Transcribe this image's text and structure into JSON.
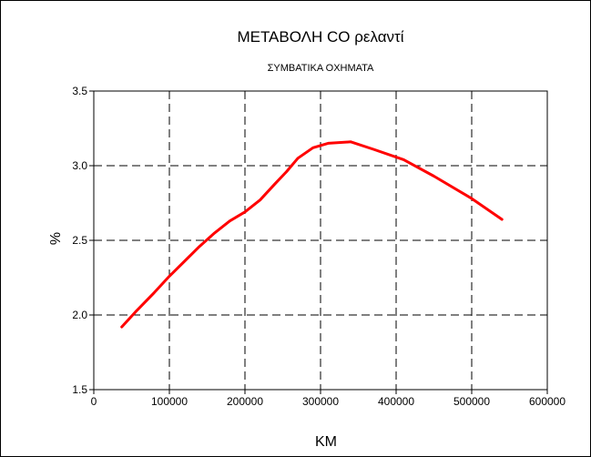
{
  "chart_data": {
    "type": "line",
    "title": "ΜΕΤΑΒΟΛΗ CO ρελαντί",
    "subtitle": "ΣΥΜΒΑΤΙΚΑ ΟΧΗΜΑΤΑ",
    "xlabel": "KM",
    "ylabel": "%",
    "xlim": [
      0,
      600000
    ],
    "ylim": [
      1.5,
      3.5
    ],
    "xticks": [
      0,
      100000,
      200000,
      300000,
      400000,
      500000,
      600000
    ],
    "xtick_labels": [
      "0",
      "100000",
      "200000",
      "300000",
      "400000",
      "500000",
      "600000"
    ],
    "yticks": [
      1.5,
      2.0,
      2.5,
      3.0,
      3.5
    ],
    "ytick_labels": [
      "1.5",
      "2.0",
      "2.5",
      "3.0",
      "3.5"
    ],
    "grid": true,
    "line_color": "#ff0000",
    "series": [
      {
        "x": [
          37000,
          55000,
          80000,
          100000,
          120000,
          140000,
          160000,
          180000,
          200000,
          220000,
          240000,
          255000,
          270000,
          290000,
          310000,
          340000,
          370000,
          410000,
          450000,
          500000,
          540000
        ],
        "y": [
          1.92,
          2.02,
          2.15,
          2.26,
          2.36,
          2.46,
          2.55,
          2.63,
          2.69,
          2.77,
          2.88,
          2.96,
          3.05,
          3.12,
          3.15,
          3.16,
          3.11,
          3.04,
          2.93,
          2.78,
          2.64
        ]
      }
    ]
  }
}
